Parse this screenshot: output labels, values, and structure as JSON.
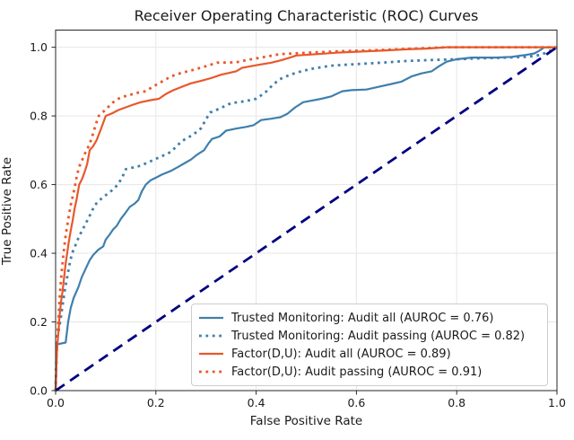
{
  "chart_data": {
    "type": "line",
    "title": "Receiver Operating Characteristic (ROC) Curves",
    "xlabel": "False Positive Rate",
    "ylabel": "True Positive Rate",
    "xlim": [
      0.0,
      1.0
    ],
    "ylim": [
      0.0,
      1.05
    ],
    "xticks": [
      "0.0",
      "0.2",
      "0.4",
      "0.6",
      "0.8",
      "1.0"
    ],
    "xtick_values": [
      0.0,
      0.2,
      0.4,
      0.6,
      0.8,
      1.0
    ],
    "yticks": [
      "0.0",
      "0.2",
      "0.4",
      "0.6",
      "0.8",
      "1.0"
    ],
    "ytick_values": [
      0.0,
      0.2,
      0.4,
      0.6,
      0.8,
      1.0
    ],
    "grid": true,
    "grid_color": "#e6e6e6",
    "spine_color": "#262626",
    "legend_position": "lower right",
    "series": [
      {
        "name": "trusted-monitoring-audit-all",
        "label": "Trusted Monitoring: Audit all (AUROC = 0.76)",
        "auroc": 0.76,
        "color": "#3f7fad",
        "style": "solid",
        "in_legend": true,
        "points": [
          [
            0,
            0
          ],
          [
            0.003,
            0.135
          ],
          [
            0.02,
            0.14
          ],
          [
            0.025,
            0.2
          ],
          [
            0.03,
            0.24
          ],
          [
            0.036,
            0.27
          ],
          [
            0.045,
            0.3
          ],
          [
            0.052,
            0.33
          ],
          [
            0.06,
            0.355
          ],
          [
            0.068,
            0.38
          ],
          [
            0.075,
            0.395
          ],
          [
            0.085,
            0.41
          ],
          [
            0.095,
            0.42
          ],
          [
            0.1,
            0.44
          ],
          [
            0.108,
            0.455
          ],
          [
            0.115,
            0.47
          ],
          [
            0.122,
            0.48
          ],
          [
            0.13,
            0.5
          ],
          [
            0.138,
            0.515
          ],
          [
            0.148,
            0.535
          ],
          [
            0.158,
            0.545
          ],
          [
            0.165,
            0.555
          ],
          [
            0.172,
            0.58
          ],
          [
            0.18,
            0.6
          ],
          [
            0.19,
            0.613
          ],
          [
            0.2,
            0.62
          ],
          [
            0.213,
            0.63
          ],
          [
            0.23,
            0.64
          ],
          [
            0.245,
            0.652
          ],
          [
            0.258,
            0.663
          ],
          [
            0.27,
            0.673
          ],
          [
            0.283,
            0.688
          ],
          [
            0.296,
            0.7
          ],
          [
            0.305,
            0.72
          ],
          [
            0.312,
            0.733
          ],
          [
            0.327,
            0.74
          ],
          [
            0.34,
            0.757
          ],
          [
            0.36,
            0.763
          ],
          [
            0.38,
            0.768
          ],
          [
            0.395,
            0.773
          ],
          [
            0.41,
            0.788
          ],
          [
            0.43,
            0.792
          ],
          [
            0.448,
            0.796
          ],
          [
            0.462,
            0.806
          ],
          [
            0.478,
            0.825
          ],
          [
            0.494,
            0.84
          ],
          [
            0.512,
            0.845
          ],
          [
            0.53,
            0.85
          ],
          [
            0.55,
            0.857
          ],
          [
            0.572,
            0.872
          ],
          [
            0.59,
            0.875
          ],
          [
            0.62,
            0.877
          ],
          [
            0.645,
            0.885
          ],
          [
            0.67,
            0.893
          ],
          [
            0.69,
            0.9
          ],
          [
            0.71,
            0.915
          ],
          [
            0.73,
            0.924
          ],
          [
            0.75,
            0.93
          ],
          [
            0.765,
            0.945
          ],
          [
            0.78,
            0.958
          ],
          [
            0.8,
            0.965
          ],
          [
            0.83,
            0.97
          ],
          [
            0.88,
            0.97
          ],
          [
            0.91,
            0.972
          ],
          [
            0.935,
            0.977
          ],
          [
            0.955,
            0.982
          ],
          [
            0.965,
            0.99
          ],
          [
            0.975,
            1
          ],
          [
            1,
            1
          ]
        ]
      },
      {
        "name": "trusted-monitoring-audit-passing",
        "label": "Trusted Monitoring: Audit passing (AUROC = 0.82)",
        "auroc": 0.82,
        "color": "#3f7fad",
        "style": "dotted",
        "in_legend": true,
        "points": [
          [
            0,
            0
          ],
          [
            0.003,
            0.15
          ],
          [
            0.008,
            0.19
          ],
          [
            0.013,
            0.24
          ],
          [
            0.018,
            0.29
          ],
          [
            0.023,
            0.33
          ],
          [
            0.028,
            0.37
          ],
          [
            0.033,
            0.4
          ],
          [
            0.04,
            0.425
          ],
          [
            0.047,
            0.45
          ],
          [
            0.055,
            0.472
          ],
          [
            0.063,
            0.495
          ],
          [
            0.07,
            0.515
          ],
          [
            0.078,
            0.54
          ],
          [
            0.088,
            0.555
          ],
          [
            0.098,
            0.567
          ],
          [
            0.108,
            0.578
          ],
          [
            0.118,
            0.59
          ],
          [
            0.125,
            0.603
          ],
          [
            0.132,
            0.618
          ],
          [
            0.14,
            0.645
          ],
          [
            0.155,
            0.65
          ],
          [
            0.17,
            0.655
          ],
          [
            0.185,
            0.665
          ],
          [
            0.2,
            0.675
          ],
          [
            0.215,
            0.685
          ],
          [
            0.23,
            0.695
          ],
          [
            0.24,
            0.71
          ],
          [
            0.252,
            0.727
          ],
          [
            0.263,
            0.736
          ],
          [
            0.275,
            0.746
          ],
          [
            0.29,
            0.764
          ],
          [
            0.3,
            0.79
          ],
          [
            0.308,
            0.81
          ],
          [
            0.325,
            0.82
          ],
          [
            0.35,
            0.837
          ],
          [
            0.378,
            0.843
          ],
          [
            0.4,
            0.85
          ],
          [
            0.418,
            0.868
          ],
          [
            0.433,
            0.89
          ],
          [
            0.447,
            0.907
          ],
          [
            0.468,
            0.92
          ],
          [
            0.49,
            0.93
          ],
          [
            0.51,
            0.937
          ],
          [
            0.535,
            0.943
          ],
          [
            0.555,
            0.947
          ],
          [
            0.6,
            0.951
          ],
          [
            0.65,
            0.955
          ],
          [
            0.7,
            0.96
          ],
          [
            0.75,
            0.963
          ],
          [
            0.8,
            0.965
          ],
          [
            0.85,
            0.968
          ],
          [
            0.9,
            0.97
          ],
          [
            0.94,
            0.972
          ],
          [
            0.965,
            0.977
          ],
          [
            0.98,
            0.985
          ],
          [
            1,
            1
          ]
        ]
      },
      {
        "name": "factor-du-audit-all",
        "label": "Factor(D,U): Audit all (AUROC = 0.89)",
        "auroc": 0.89,
        "color": "#e8582a",
        "style": "solid",
        "in_legend": true,
        "points": [
          [
            0,
            0
          ],
          [
            0.002,
            0.1
          ],
          [
            0.004,
            0.14
          ],
          [
            0.006,
            0.18
          ],
          [
            0.008,
            0.22
          ],
          [
            0.011,
            0.26
          ],
          [
            0.014,
            0.29
          ],
          [
            0.017,
            0.33
          ],
          [
            0.02,
            0.37
          ],
          [
            0.023,
            0.4
          ],
          [
            0.026,
            0.43
          ],
          [
            0.03,
            0.465
          ],
          [
            0.034,
            0.495
          ],
          [
            0.038,
            0.53
          ],
          [
            0.042,
            0.558
          ],
          [
            0.047,
            0.6
          ],
          [
            0.053,
            0.617
          ],
          [
            0.058,
            0.637
          ],
          [
            0.063,
            0.66
          ],
          [
            0.068,
            0.7
          ],
          [
            0.075,
            0.712
          ],
          [
            0.082,
            0.73
          ],
          [
            0.09,
            0.76
          ],
          [
            0.1,
            0.8
          ],
          [
            0.112,
            0.807
          ],
          [
            0.125,
            0.817
          ],
          [
            0.14,
            0.825
          ],
          [
            0.155,
            0.833
          ],
          [
            0.17,
            0.84
          ],
          [
            0.19,
            0.846
          ],
          [
            0.206,
            0.85
          ],
          [
            0.22,
            0.864
          ],
          [
            0.235,
            0.875
          ],
          [
            0.252,
            0.885
          ],
          [
            0.27,
            0.895
          ],
          [
            0.29,
            0.902
          ],
          [
            0.31,
            0.91
          ],
          [
            0.33,
            0.92
          ],
          [
            0.345,
            0.925
          ],
          [
            0.36,
            0.93
          ],
          [
            0.372,
            0.94
          ],
          [
            0.39,
            0.945
          ],
          [
            0.41,
            0.95
          ],
          [
            0.43,
            0.955
          ],
          [
            0.45,
            0.962
          ],
          [
            0.468,
            0.97
          ],
          [
            0.48,
            0.976
          ],
          [
            0.52,
            0.98
          ],
          [
            0.56,
            0.984
          ],
          [
            0.6,
            0.987
          ],
          [
            0.65,
            0.99
          ],
          [
            0.7,
            0.994
          ],
          [
            0.74,
            0.996
          ],
          [
            0.78,
            1
          ],
          [
            1,
            1
          ]
        ]
      },
      {
        "name": "factor-du-audit-passing",
        "label": "Factor(D,U): Audit passing (AUROC = 0.91)",
        "auroc": 0.91,
        "color": "#e8582a",
        "style": "dotted",
        "in_legend": true,
        "points": [
          [
            0,
            0
          ],
          [
            0.002,
            0.12
          ],
          [
            0.004,
            0.17
          ],
          [
            0.006,
            0.22
          ],
          [
            0.008,
            0.27
          ],
          [
            0.01,
            0.31
          ],
          [
            0.013,
            0.36
          ],
          [
            0.016,
            0.4
          ],
          [
            0.019,
            0.44
          ],
          [
            0.022,
            0.47
          ],
          [
            0.026,
            0.505
          ],
          [
            0.03,
            0.54
          ],
          [
            0.034,
            0.565
          ],
          [
            0.038,
            0.59
          ],
          [
            0.043,
            0.63
          ],
          [
            0.048,
            0.655
          ],
          [
            0.054,
            0.675
          ],
          [
            0.06,
            0.695
          ],
          [
            0.067,
            0.715
          ],
          [
            0.074,
            0.745
          ],
          [
            0.08,
            0.775
          ],
          [
            0.086,
            0.8
          ],
          [
            0.095,
            0.812
          ],
          [
            0.105,
            0.826
          ],
          [
            0.115,
            0.84
          ],
          [
            0.125,
            0.85
          ],
          [
            0.135,
            0.856
          ],
          [
            0.15,
            0.862
          ],
          [
            0.165,
            0.868
          ],
          [
            0.18,
            0.872
          ],
          [
            0.195,
            0.886
          ],
          [
            0.212,
            0.9
          ],
          [
            0.23,
            0.915
          ],
          [
            0.25,
            0.925
          ],
          [
            0.274,
            0.934
          ],
          [
            0.3,
            0.945
          ],
          [
            0.322,
            0.955
          ],
          [
            0.36,
            0.956
          ],
          [
            0.39,
            0.965
          ],
          [
            0.41,
            0.97
          ],
          [
            0.447,
            0.98
          ],
          [
            0.49,
            0.983
          ],
          [
            0.53,
            0.986
          ],
          [
            0.58,
            0.989
          ],
          [
            0.63,
            0.991
          ],
          [
            0.68,
            0.994
          ],
          [
            0.73,
            0.997
          ],
          [
            0.78,
            1
          ],
          [
            1,
            1
          ]
        ]
      },
      {
        "name": "chance-diagonal",
        "label": "",
        "color": "#000080",
        "style": "dashed",
        "in_legend": false,
        "points": [
          [
            0,
            0
          ],
          [
            1,
            1
          ]
        ]
      }
    ]
  }
}
